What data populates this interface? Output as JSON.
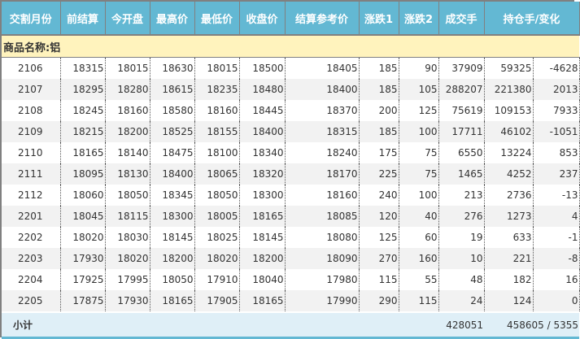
{
  "header": [
    "交割月份",
    "前结算",
    "今开盘",
    "最高价",
    "最低价",
    "收盘价",
    "结算参考价",
    "涨跌1",
    "涨跌2",
    "成交手",
    "持仓手/变化"
  ],
  "product_label": "商品名称:铝",
  "rows": [
    [
      "2106",
      "18315",
      "18015",
      "18630",
      "18015",
      "18500",
      "18405",
      "185",
      "90",
      "37909",
      "59325",
      "-4628"
    ],
    [
      "2107",
      "18295",
      "18280",
      "18615",
      "18235",
      "18480",
      "18400",
      "185",
      "105",
      "288207",
      "221380",
      "2013"
    ],
    [
      "2108",
      "18245",
      "18160",
      "18580",
      "18160",
      "18445",
      "18370",
      "200",
      "125",
      "75619",
      "109153",
      "7933"
    ],
    [
      "2109",
      "18215",
      "18200",
      "18525",
      "18155",
      "18400",
      "18315",
      "185",
      "100",
      "17711",
      "46102",
      "-1051"
    ],
    [
      "2110",
      "18165",
      "18140",
      "18475",
      "18100",
      "18340",
      "18240",
      "175",
      "75",
      "6550",
      "13224",
      "853"
    ],
    [
      "2111",
      "18095",
      "18130",
      "18400",
      "18065",
      "18320",
      "18170",
      "225",
      "75",
      "1465",
      "4252",
      "237"
    ],
    [
      "2112",
      "18060",
      "18050",
      "18345",
      "18050",
      "18300",
      "18160",
      "240",
      "100",
      "213",
      "2736",
      "-13"
    ],
    [
      "2201",
      "18045",
      "18115",
      "18300",
      "18005",
      "18165",
      "18085",
      "120",
      "40",
      "276",
      "1273",
      "4"
    ],
    [
      "2202",
      "18020",
      "18030",
      "18145",
      "18025",
      "18145",
      "18080",
      "125",
      "60",
      "19",
      "633",
      "-1"
    ],
    [
      "2203",
      "17930",
      "18020",
      "18200",
      "18020",
      "18200",
      "18090",
      "270",
      "160",
      "10",
      "221",
      "-8"
    ],
    [
      "2204",
      "17925",
      "17995",
      "18050",
      "17910",
      "18040",
      "17980",
      "115",
      "55",
      "48",
      "182",
      "16"
    ],
    [
      "2205",
      "17875",
      "17930",
      "18165",
      "17905",
      "18165",
      "17990",
      "290",
      "115",
      "24",
      "124",
      "0"
    ]
  ],
  "subtotal": {
    "label": "小计",
    "volume": "428051",
    "open_interest": "458605 / 5355"
  }
}
